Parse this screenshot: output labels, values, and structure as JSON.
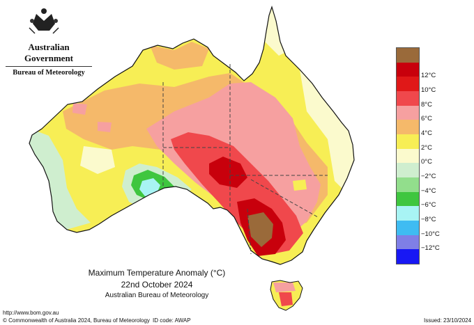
{
  "header": {
    "government": "Australian Government",
    "bureau": "Bureau of Meteorology"
  },
  "title": {
    "line1": "Maximum Temperature Anomaly (°C)",
    "line2": "22nd October 2024",
    "line3": "Australian Bureau of Meteorology"
  },
  "footer": {
    "url": "http://www.bom.gov.au",
    "copyright": "© Commonwealth of Australia 2024, Bureau of Meteorology",
    "id_code": "ID code: AWAP",
    "issued": "Issued: 23/10/2024"
  },
  "legend": [
    {
      "label": "",
      "color": "#9a6a3a"
    },
    {
      "label": "12°C",
      "color": "#c8000c"
    },
    {
      "label": "10°C",
      "color": "#e01818"
    },
    {
      "label": "8°C",
      "color": "#f0484c"
    },
    {
      "label": "6°C",
      "color": "#f6a0a0"
    },
    {
      "label": "4°C",
      "color": "#f5b96a"
    },
    {
      "label": "2°C",
      "color": "#f7ee55"
    },
    {
      "label": "0°C",
      "color": "#fbfacd"
    },
    {
      "label": "−2°C",
      "color": "#cfeecf"
    },
    {
      "label": "−4°C",
      "color": "#92de8c"
    },
    {
      "label": "−6°C",
      "color": "#3fc63f"
    },
    {
      "label": "−8°C",
      "color": "#a8f4f4"
    },
    {
      "label": "−10°C",
      "color": "#3fbcf2"
    },
    {
      "label": "−12°C",
      "color": "#7f7fe6"
    },
    {
      "label": "",
      "color": "#1818f4"
    }
  ],
  "colors": {
    "sea": "#ffffff",
    "state_border": "#444444",
    "coast": "#111111"
  }
}
